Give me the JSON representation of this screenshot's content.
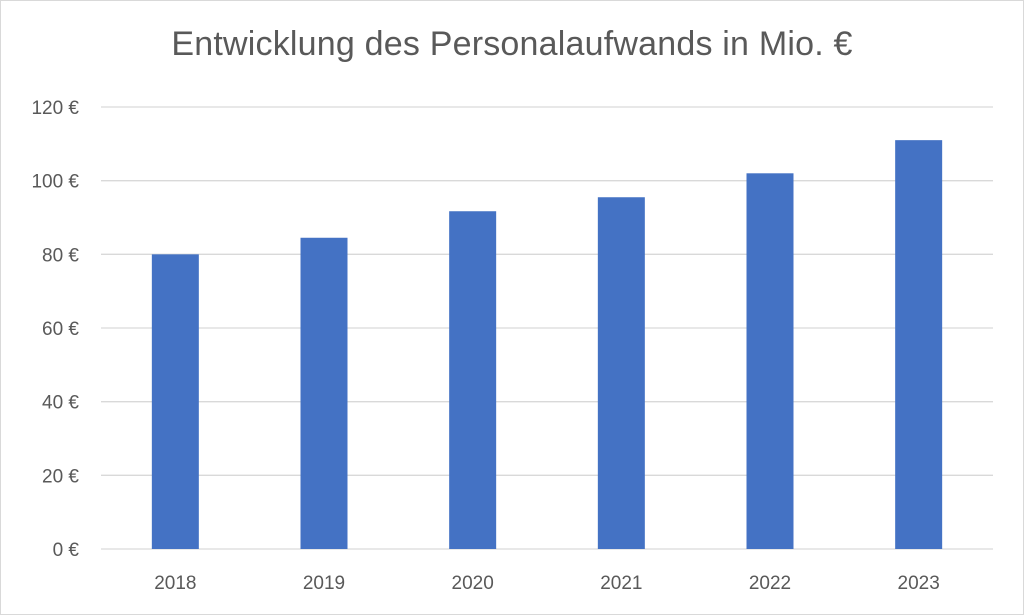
{
  "chart_data": {
    "type": "bar",
    "title": "Entwicklung des Personalaufwands in Mio. €",
    "xlabel": "",
    "ylabel": "",
    "categories": [
      "2018",
      "2019",
      "2020",
      "2021",
      "2022",
      "2023"
    ],
    "values": [
      80,
      84.5,
      91.7,
      95.5,
      102,
      111
    ],
    "ylim": [
      0,
      120
    ],
    "yticks": [
      0,
      20,
      40,
      60,
      80,
      100,
      120
    ],
    "ytick_labels": [
      "0 €",
      "20 €",
      "40 €",
      "60 €",
      "80 €",
      "100 €",
      "120 €"
    ],
    "grid": true,
    "legend": "none",
    "colors": {
      "bar": "#4472c4",
      "grid": "#d9d9d9",
      "text": "#595959"
    }
  }
}
